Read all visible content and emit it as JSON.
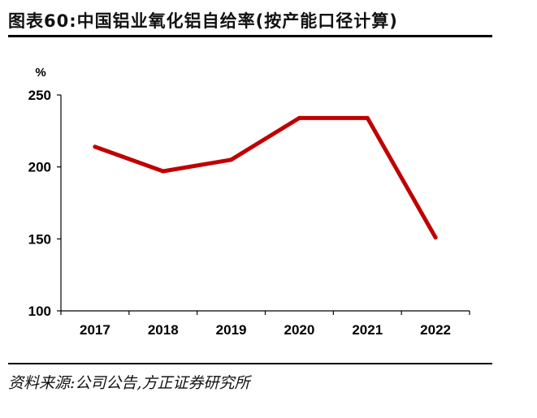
{
  "figure": {
    "title": "图表60:中国铝业氧化铝自给率(按产能口径计算)",
    "source": "资料来源:公司公告,方正证券研究所"
  },
  "chart_data": {
    "type": "line",
    "title": "中国铝业氧化铝自给率(按产能口径计算)",
    "ylabel": "%",
    "xlabel": "",
    "categories": [
      "2017",
      "2018",
      "2019",
      "2020",
      "2021",
      "2022"
    ],
    "series": [
      {
        "name": "氧化铝自给率",
        "values": [
          214,
          197,
          205,
          234,
          234,
          151
        ],
        "color": "#c00000"
      }
    ],
    "ylim": [
      100,
      250
    ],
    "yticks": [
      100,
      150,
      200,
      250
    ],
    "grid": false,
    "legend": "none"
  }
}
